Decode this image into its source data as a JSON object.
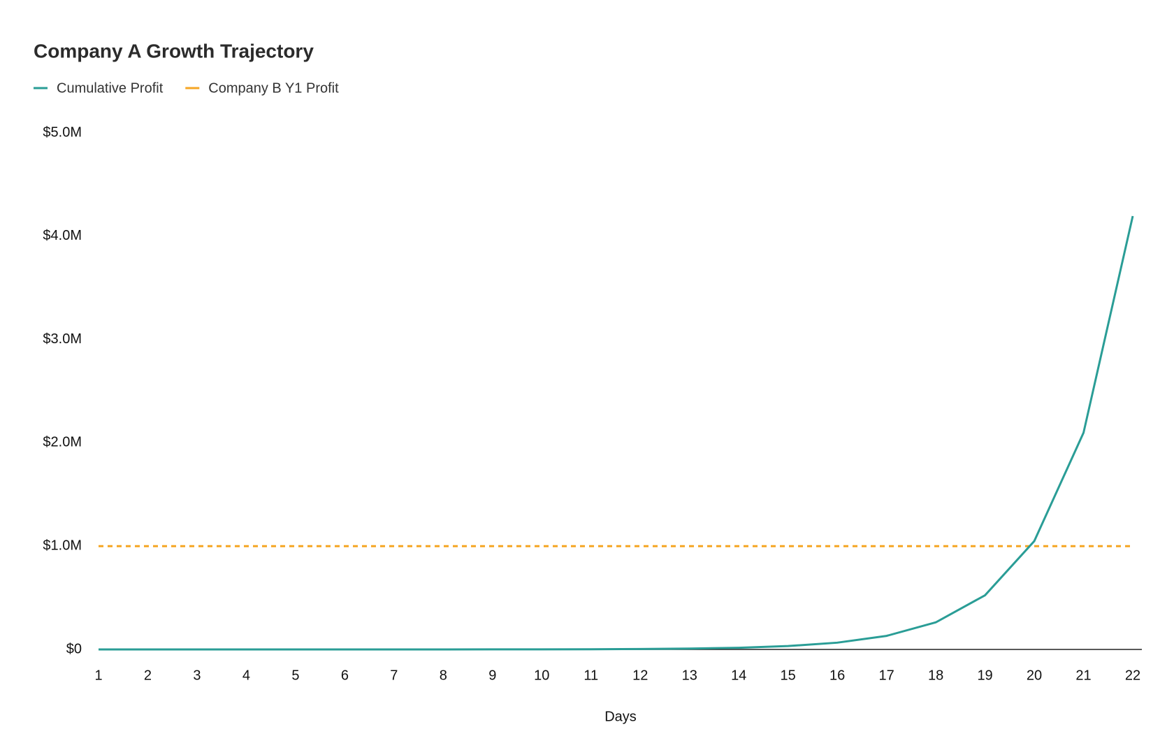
{
  "chart_data": {
    "type": "line",
    "title": "Company A Growth Trajectory",
    "x_label": "Days",
    "x": [
      1,
      2,
      3,
      4,
      5,
      6,
      7,
      8,
      9,
      10,
      11,
      12,
      13,
      14,
      15,
      16,
      17,
      18,
      19,
      20,
      21,
      22
    ],
    "xlim": [
      1,
      22
    ],
    "xticks": [
      1,
      2,
      3,
      4,
      5,
      6,
      7,
      8,
      9,
      10,
      11,
      12,
      13,
      14,
      15,
      16,
      17,
      18,
      19,
      20,
      21,
      22
    ],
    "ylim": [
      0,
      5000000
    ],
    "yticks": [
      {
        "value": 0,
        "label": "$0"
      },
      {
        "value": 1000000,
        "label": "$1.0M"
      },
      {
        "value": 2000000,
        "label": "$2.0M"
      },
      {
        "value": 3000000,
        "label": "$3.0M"
      },
      {
        "value": 4000000,
        "label": "$4.0M"
      },
      {
        "value": 5000000,
        "label": "$5.0M"
      }
    ],
    "grid": false,
    "legend": "top-left",
    "series": [
      {
        "name": "Cumulative Profit",
        "color": "#2a9d96",
        "dashed": false,
        "values": [
          1,
          3,
          7,
          15,
          31,
          63,
          127,
          255,
          511,
          1023,
          2047,
          4095,
          8191,
          16383,
          32767,
          65535,
          131071,
          262143,
          524287,
          1048575,
          2097151,
          4194303
        ]
      },
      {
        "name": "Company B Y1 Profit",
        "color": "#f5a623",
        "dashed": true,
        "values": [
          1000000,
          1000000,
          1000000,
          1000000,
          1000000,
          1000000,
          1000000,
          1000000,
          1000000,
          1000000,
          1000000,
          1000000,
          1000000,
          1000000,
          1000000,
          1000000,
          1000000,
          1000000,
          1000000,
          1000000,
          1000000,
          1000000
        ]
      }
    ]
  }
}
